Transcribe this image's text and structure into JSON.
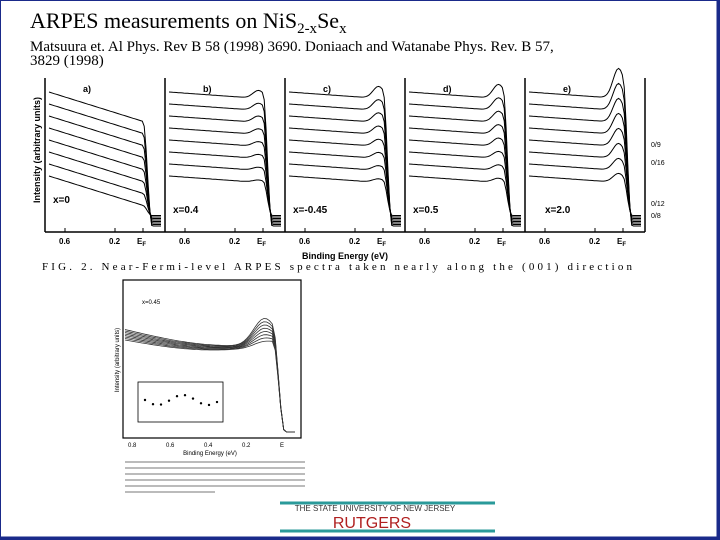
{
  "slide": {
    "title": {
      "main": "ARPES measurements on NiS",
      "sub1": "2-x",
      "mid": "Se",
      "sub2": "x"
    },
    "citation": [
      "Matsuura et. Al Phys. Rev B 58 (1998) 3690. Doniaach and Watanabe Phys. Rev. B 57,",
      "3829 (1998)"
    ],
    "figure2": {
      "y_axis": "Intensity (arbitrary units)",
      "panels": [
        {
          "label": "a)",
          "composition": "x=0"
        },
        {
          "label": "b)",
          "composition": "x=0.4"
        },
        {
          "label": "c)",
          "composition": "x=-0.45"
        },
        {
          "label": "d)",
          "composition": "x=0.5"
        },
        {
          "label": "e)",
          "composition": "x=2.0"
        }
      ],
      "ticks": [
        "0.6",
        "0.2",
        "E",
        "F"
      ],
      "angles": [
        "0/9",
        "0/16",
        "0/12",
        "0/8"
      ],
      "x_axis": "Binding Energy (eV)",
      "caption": "FIG. 2.  Near-Fermi-level ARPES spectra taken nearly along the (001) direction"
    },
    "figure1": {
      "composition": "x=0.45",
      "y_axis": "Intensity (arbitrary units)",
      "ticks": [
        "0.8",
        "0.6",
        "0.4",
        "0.2",
        "E"
      ],
      "x_axis": "Binding Energy (eV)"
    },
    "footer": {
      "university": "THE STATE UNIVERSITY OF NEW JERSEY",
      "name": "RUTGERS"
    }
  }
}
